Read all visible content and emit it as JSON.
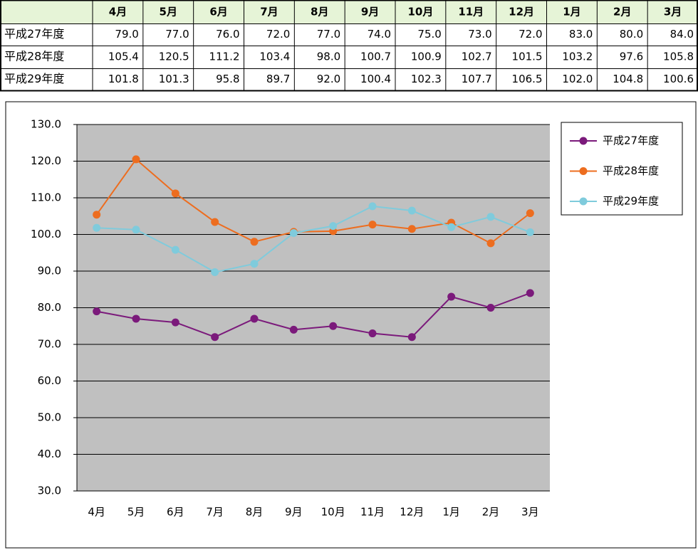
{
  "table": {
    "rows": [
      [
        "79.0",
        "77.0",
        "76.0",
        "72.0",
        "77.0",
        "74.0",
        "75.0",
        "73.0",
        "72.0",
        "83.0",
        "80.0",
        "84.0"
      ],
      [
        "105.4",
        "120.5",
        "111.2",
        "103.4",
        "98.0",
        "100.7",
        "100.9",
        "102.7",
        "101.5",
        "103.2",
        "97.6",
        "105.8"
      ],
      [
        "101.8",
        "101.3",
        "95.8",
        "89.7",
        "92.0",
        "100.4",
        "102.3",
        "107.7",
        "106.5",
        "102.0",
        "104.8",
        "100.6"
      ]
    ],
    "label_colors": [
      "#8a9a2a",
      "#c00000",
      "#2e3d9a"
    ]
  },
  "chart_data": {
    "type": "line",
    "categories": [
      "4月",
      "5月",
      "6月",
      "7月",
      "8月",
      "9月",
      "10月",
      "11月",
      "12月",
      "1月",
      "2月",
      "3月"
    ],
    "series": [
      {
        "name": "平成27年度",
        "color": "#7b1a7b",
        "values": [
          79.0,
          77.0,
          76.0,
          72.0,
          77.0,
          74.0,
          75.0,
          73.0,
          72.0,
          83.0,
          80.0,
          84.0
        ]
      },
      {
        "name": "平成28年度",
        "color": "#ed6d1f",
        "values": [
          105.4,
          120.5,
          111.2,
          103.4,
          98.0,
          100.7,
          100.9,
          102.7,
          101.5,
          103.2,
          97.6,
          105.8
        ]
      },
      {
        "name": "平成29年度",
        "color": "#7fcbdc",
        "values": [
          101.8,
          101.3,
          95.8,
          89.7,
          92.0,
          100.4,
          102.3,
          107.7,
          106.5,
          102.0,
          104.8,
          100.6
        ]
      }
    ],
    "ylim": [
      30,
      130
    ],
    "yticks": [
      {
        "value": 30,
        "label": "30.0"
      },
      {
        "value": 40,
        "label": "40.0"
      },
      {
        "value": 50,
        "label": "50.0"
      },
      {
        "value": 60,
        "label": "60.0"
      },
      {
        "value": 70,
        "label": "70.0"
      },
      {
        "value": 80,
        "label": "80.0"
      },
      {
        "value": 90,
        "label": "90.0"
      },
      {
        "value": 100,
        "label": "100.0"
      },
      {
        "value": 110,
        "label": "110.0"
      },
      {
        "value": 120,
        "label": "120.0"
      },
      {
        "value": 130,
        "label": "130.0"
      }
    ],
    "grid": true,
    "legend": "right"
  }
}
